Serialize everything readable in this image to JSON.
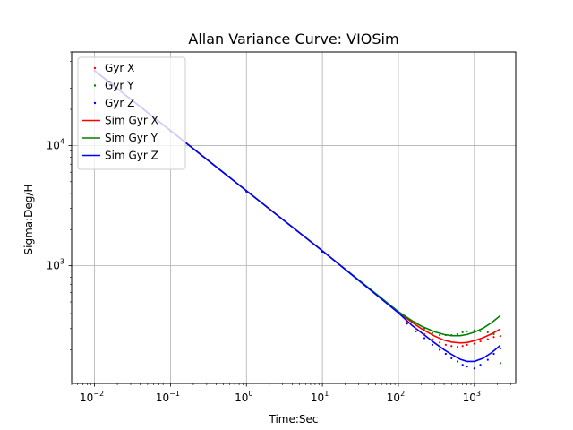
{
  "chart_data": {
    "type": "line",
    "title": "Allan Variance Curve: VIOSim",
    "xlabel": "Time:Sec",
    "ylabel": "Sigma:Deg/H",
    "xscale": "log",
    "yscale": "log",
    "xlim": [
      0.005,
      3500
    ],
    "ylim": [
      105,
      60000
    ],
    "grid": true,
    "legend": "upper-left",
    "x_ticks": [
      {
        "value": 0.01,
        "base": "10",
        "exp": "−2"
      },
      {
        "value": 0.1,
        "base": "10",
        "exp": "−1"
      },
      {
        "value": 1,
        "base": "10",
        "exp": "0"
      },
      {
        "value": 10,
        "base": "10",
        "exp": "1"
      },
      {
        "value": 100,
        "base": "10",
        "exp": "2"
      },
      {
        "value": 1000,
        "base": "10",
        "exp": "3"
      }
    ],
    "y_ticks": [
      {
        "value": 1000,
        "base": "10",
        "exp": "3"
      },
      {
        "value": 10000,
        "base": "10",
        "exp": "4"
      }
    ],
    "series": [
      {
        "name": "Gyr X",
        "kind": "scatter",
        "color": "#ff0000",
        "x": [
          0.01,
          0.1,
          1,
          10,
          100,
          130,
          170,
          220,
          280,
          350,
          420,
          500,
          600,
          700,
          800,
          1000,
          1200,
          1500,
          1800,
          2200
        ],
        "y": [
          42000,
          13200,
          4150,
          1310,
          410,
          340,
          300,
          270,
          245,
          230,
          220,
          215,
          212,
          215,
          220,
          225,
          235,
          245,
          255,
          260
        ]
      },
      {
        "name": "Gyr Y",
        "kind": "scatter",
        "color": "#008000",
        "x": [
          0.01,
          0.1,
          1,
          10,
          100,
          130,
          170,
          220,
          280,
          350,
          420,
          500,
          600,
          700,
          800,
          1000,
          1200,
          1500,
          1800,
          2200
        ],
        "y": [
          42000,
          13200,
          4150,
          1310,
          410,
          370,
          335,
          300,
          275,
          265,
          265,
          265,
          270,
          280,
          285,
          290,
          285,
          280,
          270,
          155
        ]
      },
      {
        "name": "Gyr Z",
        "kind": "scatter",
        "color": "#0000ff",
        "x": [
          0.01,
          0.1,
          1,
          10,
          100,
          130,
          170,
          220,
          280,
          350,
          420,
          500,
          600,
          700,
          800,
          1000,
          1200,
          1500,
          1800,
          2200
        ],
        "y": [
          42000,
          13200,
          4150,
          1310,
          410,
          330,
          285,
          250,
          220,
          200,
          185,
          170,
          160,
          150,
          145,
          140,
          150,
          165,
          185,
          205
        ]
      },
      {
        "name": "Sim Gyr X",
        "kind": "line",
        "color": "#ff0000",
        "x": [
          0.01,
          0.1,
          1,
          10,
          100,
          150,
          200,
          300,
          400,
          500,
          650,
          800,
          1000,
          1300,
          1700,
          2200
        ],
        "y": [
          42000,
          13300,
          4200,
          1330,
          410,
          340,
          300,
          260,
          240,
          232,
          228,
          230,
          238,
          252,
          272,
          298
        ]
      },
      {
        "name": "Sim Gyr Y",
        "kind": "line",
        "color": "#008000",
        "x": [
          0.01,
          0.1,
          1,
          10,
          100,
          150,
          200,
          300,
          400,
          500,
          650,
          800,
          1000,
          1300,
          1700,
          2200
        ],
        "y": [
          42000,
          13300,
          4200,
          1330,
          415,
          350,
          315,
          282,
          268,
          262,
          262,
          268,
          280,
          302,
          338,
          385
        ]
      },
      {
        "name": "Sim Gyr Z",
        "kind": "line",
        "color": "#0000ff",
        "x": [
          0.01,
          0.1,
          1,
          10,
          100,
          150,
          200,
          300,
          400,
          500,
          650,
          800,
          1000,
          1300,
          1700,
          2200
        ],
        "y": [
          42000,
          13300,
          4200,
          1330,
          405,
          320,
          278,
          228,
          200,
          183,
          167,
          160,
          160,
          170,
          190,
          218
        ]
      }
    ]
  }
}
